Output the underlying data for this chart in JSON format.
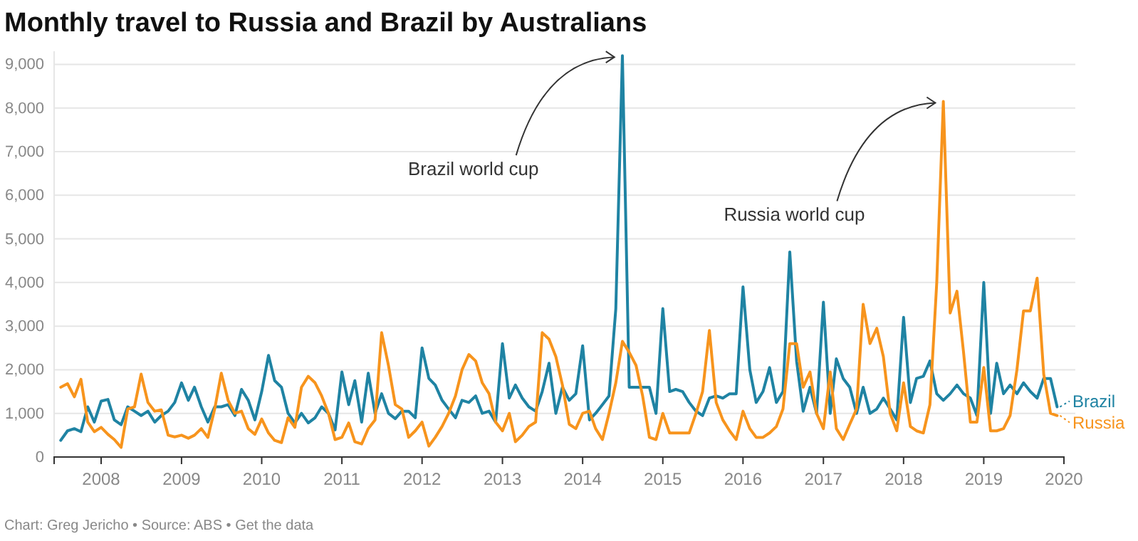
{
  "chart_data": {
    "type": "line",
    "title": "Monthly travel to Russia and Brazil by Australians",
    "x": [
      "2007-07",
      "2007-08",
      "2007-09",
      "2007-10",
      "2007-11",
      "2007-12",
      "2008-01",
      "2008-02",
      "2008-03",
      "2008-04",
      "2008-05",
      "2008-06",
      "2008-07",
      "2008-08",
      "2008-09",
      "2008-10",
      "2008-11",
      "2008-12",
      "2009-01",
      "2009-02",
      "2009-03",
      "2009-04",
      "2009-05",
      "2009-06",
      "2009-07",
      "2009-08",
      "2009-09",
      "2009-10",
      "2009-11",
      "2009-12",
      "2010-01",
      "2010-02",
      "2010-03",
      "2010-04",
      "2010-05",
      "2010-06",
      "2010-07",
      "2010-08",
      "2010-09",
      "2010-10",
      "2010-11",
      "2010-12",
      "2011-01",
      "2011-02",
      "2011-03",
      "2011-04",
      "2011-05",
      "2011-06",
      "2011-07",
      "2011-08",
      "2011-09",
      "2011-10",
      "2011-11",
      "2011-12",
      "2012-01",
      "2012-02",
      "2012-03",
      "2012-04",
      "2012-05",
      "2012-06",
      "2012-07",
      "2012-08",
      "2012-09",
      "2012-10",
      "2012-11",
      "2012-12",
      "2013-01",
      "2013-02",
      "2013-03",
      "2013-04",
      "2013-05",
      "2013-06",
      "2013-07",
      "2013-08",
      "2013-09",
      "2013-10",
      "2013-11",
      "2013-12",
      "2014-01",
      "2014-02",
      "2014-03",
      "2014-04",
      "2014-05",
      "2014-06",
      "2014-07",
      "2014-08",
      "2014-09",
      "2014-10",
      "2014-11",
      "2014-12",
      "2015-01",
      "2015-02",
      "2015-03",
      "2015-04",
      "2015-05",
      "2015-06",
      "2015-07",
      "2015-08",
      "2015-09",
      "2015-10",
      "2015-11",
      "2015-12",
      "2016-01",
      "2016-02",
      "2016-03",
      "2016-04",
      "2016-05",
      "2016-06",
      "2016-07",
      "2016-08",
      "2016-09",
      "2016-10",
      "2016-11",
      "2016-12",
      "2017-01",
      "2017-02",
      "2017-03",
      "2017-04",
      "2017-05",
      "2017-06",
      "2017-07",
      "2017-08",
      "2017-09",
      "2017-10",
      "2017-11",
      "2017-12",
      "2018-01",
      "2018-02",
      "2018-03",
      "2018-04",
      "2018-05",
      "2018-06",
      "2018-07",
      "2018-08",
      "2018-09",
      "2018-10",
      "2018-11",
      "2018-12",
      "2019-01",
      "2019-02",
      "2019-03",
      "2019-04",
      "2019-05",
      "2019-06",
      "2019-07",
      "2019-08",
      "2019-09",
      "2019-10",
      "2019-11",
      "2019-12"
    ],
    "series": [
      {
        "name": "Brazil",
        "color": "#1f83a3",
        "values": [
          380,
          600,
          650,
          580,
          1150,
          800,
          1280,
          1320,
          850,
          740,
          1150,
          1050,
          950,
          1050,
          800,
          950,
          1050,
          1250,
          1700,
          1300,
          1600,
          1150,
          800,
          1150,
          1150,
          1200,
          950,
          1550,
          1300,
          850,
          1500,
          2330,
          1750,
          1600,
          1000,
          780,
          1000,
          780,
          900,
          1150,
          1000,
          620,
          1950,
          1200,
          1750,
          800,
          1920,
          1000,
          1450,
          1000,
          880,
          1050,
          1050,
          900,
          2500,
          1800,
          1650,
          1300,
          1100,
          900,
          1300,
          1250,
          1400,
          1000,
          1050,
          800,
          2600,
          1350,
          1650,
          1350,
          1150,
          1050,
          1500,
          2150,
          1000,
          1600,
          1300,
          1450,
          2550,
          850,
          1000,
          1200,
          1400,
          3400,
          9200,
          1600,
          1600,
          1600,
          1600,
          1000,
          3400,
          1500,
          1550,
          1500,
          1250,
          1050,
          950,
          1350,
          1400,
          1350,
          1450,
          1450,
          3900,
          2000,
          1250,
          1500,
          2050,
          1250,
          1500,
          4700,
          2200,
          1050,
          1600,
          1000,
          3550,
          1000,
          2250,
          1800,
          1600,
          1000,
          1600,
          1000,
          1100,
          1350,
          1100,
          850,
          3200,
          1250,
          1800,
          1850,
          2200,
          1450,
          1300,
          1450,
          1650,
          1450,
          1350,
          950,
          4000,
          1000,
          2150,
          1450,
          1650,
          1450,
          1700,
          1500,
          1350,
          1800,
          1800,
          1150
        ]
      },
      {
        "name": "Russia",
        "color": "#f7941d",
        "values": [
          1600,
          1680,
          1380,
          1780,
          800,
          580,
          680,
          520,
          400,
          220,
          1100,
          1150,
          1900,
          1250,
          1050,
          1080,
          500,
          460,
          500,
          430,
          500,
          650,
          450,
          1100,
          1920,
          1300,
          1000,
          1050,
          650,
          520,
          870,
          550,
          380,
          330,
          900,
          680,
          1600,
          1850,
          1700,
          1400,
          1000,
          400,
          450,
          780,
          350,
          300,
          650,
          850,
          2850,
          2100,
          1200,
          1100,
          450,
          600,
          800,
          250,
          450,
          700,
          1000,
          1400,
          2000,
          2350,
          2200,
          1700,
          1450,
          800,
          600,
          1000,
          350,
          500,
          700,
          800,
          2850,
          2700,
          2300,
          1650,
          750,
          650,
          1000,
          1050,
          650,
          400,
          1000,
          1700,
          2650,
          2400,
          2100,
          1400,
          450,
          400,
          1000,
          550,
          550,
          550,
          550,
          1000,
          1500,
          2900,
          1250,
          850,
          600,
          400,
          1050,
          650,
          450,
          450,
          550,
          700,
          1100,
          2600,
          2600,
          1600,
          1950,
          1000,
          650,
          1950,
          650,
          400,
          750,
          1100,
          3500,
          2600,
          2950,
          2300,
          1000,
          600,
          1700,
          700,
          600,
          550,
          1200,
          4000,
          8150,
          3300,
          3800,
          2400,
          800,
          800,
          2050,
          600,
          600,
          650,
          950,
          2000,
          3350,
          3350,
          4100,
          1900,
          1000,
          950
        ]
      }
    ],
    "xlim": [
      "2007-06",
      "2020-01"
    ],
    "xticks": [
      "2008",
      "2009",
      "2010",
      "2011",
      "2012",
      "2013",
      "2014",
      "2015",
      "2016",
      "2017",
      "2018",
      "2019",
      "2020"
    ],
    "ylim": [
      0,
      9300
    ],
    "yticks": [
      0,
      {
        "value": 1000,
        "label": "1,000"
      },
      {
        "value": 2000,
        "label": "2,000"
      },
      {
        "value": 3000,
        "label": "3,000"
      },
      {
        "value": 4000,
        "label": "4,000"
      },
      {
        "value": 5000,
        "label": "5,000"
      },
      {
        "value": 6000,
        "label": "6,000"
      },
      {
        "value": 7000,
        "label": "7,000"
      },
      {
        "value": 8000,
        "label": "8,000"
      },
      {
        "value": 9000,
        "label": "9,000"
      }
    ],
    "grid": "y",
    "legend": "right",
    "marker": "none",
    "line_style": "solid",
    "annotations": [
      {
        "text": "Brazil world cup",
        "x": "2014-06",
        "y": 9200
      },
      {
        "text": "Russia world cup",
        "x": "2018-06",
        "y": 8150
      },
      "Chart: Greg Jericho • Source: ABS • Get the data"
    ]
  }
}
